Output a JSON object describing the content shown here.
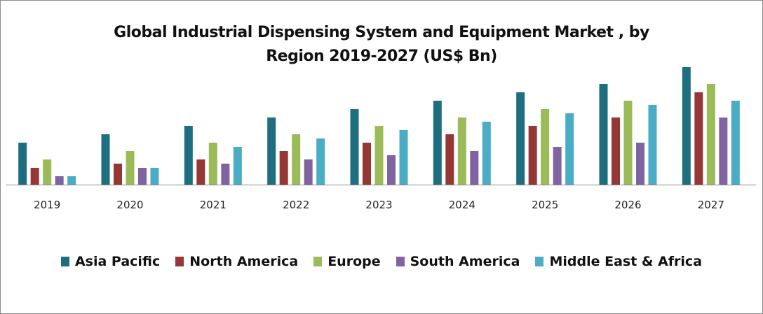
{
  "chart_data": {
    "type": "bar",
    "title": "Global Industrial Dispensing System and Equipment Market , by Region 2019-2027 (US$ Bn)",
    "title_lines": [
      "Global Industrial Dispensing System and Equipment Market , by",
      "Region 2019-2027 (US$ Bn)"
    ],
    "categories": [
      "2019",
      "2020",
      "2021",
      "2022",
      "2023",
      "2024",
      "2025",
      "2026",
      "2027"
    ],
    "series": [
      {
        "name": "Asia Pacific",
        "color": "#1f6e80",
        "values": [
          5,
          6,
          7,
          8,
          9,
          10,
          11,
          12,
          14
        ]
      },
      {
        "name": "North America",
        "color": "#953735",
        "values": [
          2,
          2.5,
          3,
          4,
          5,
          6,
          7,
          8,
          11
        ]
      },
      {
        "name": "Europe",
        "color": "#9bbb59",
        "values": [
          3,
          4,
          5,
          6,
          7,
          8,
          9,
          10,
          12
        ]
      },
      {
        "name": "South America",
        "color": "#8064a2",
        "values": [
          1,
          2,
          2.5,
          3,
          3.5,
          4,
          4.5,
          5,
          8
        ]
      },
      {
        "name": "Middle East & Africa",
        "color": "#4bacc6",
        "values": [
          1,
          2,
          4.5,
          5.5,
          6.5,
          7.5,
          8.5,
          9.5,
          10
        ]
      }
    ],
    "ylim": [
      0,
      14.5
    ],
    "y_axis_shown": false,
    "grid": false,
    "legend_position": "bottom"
  }
}
